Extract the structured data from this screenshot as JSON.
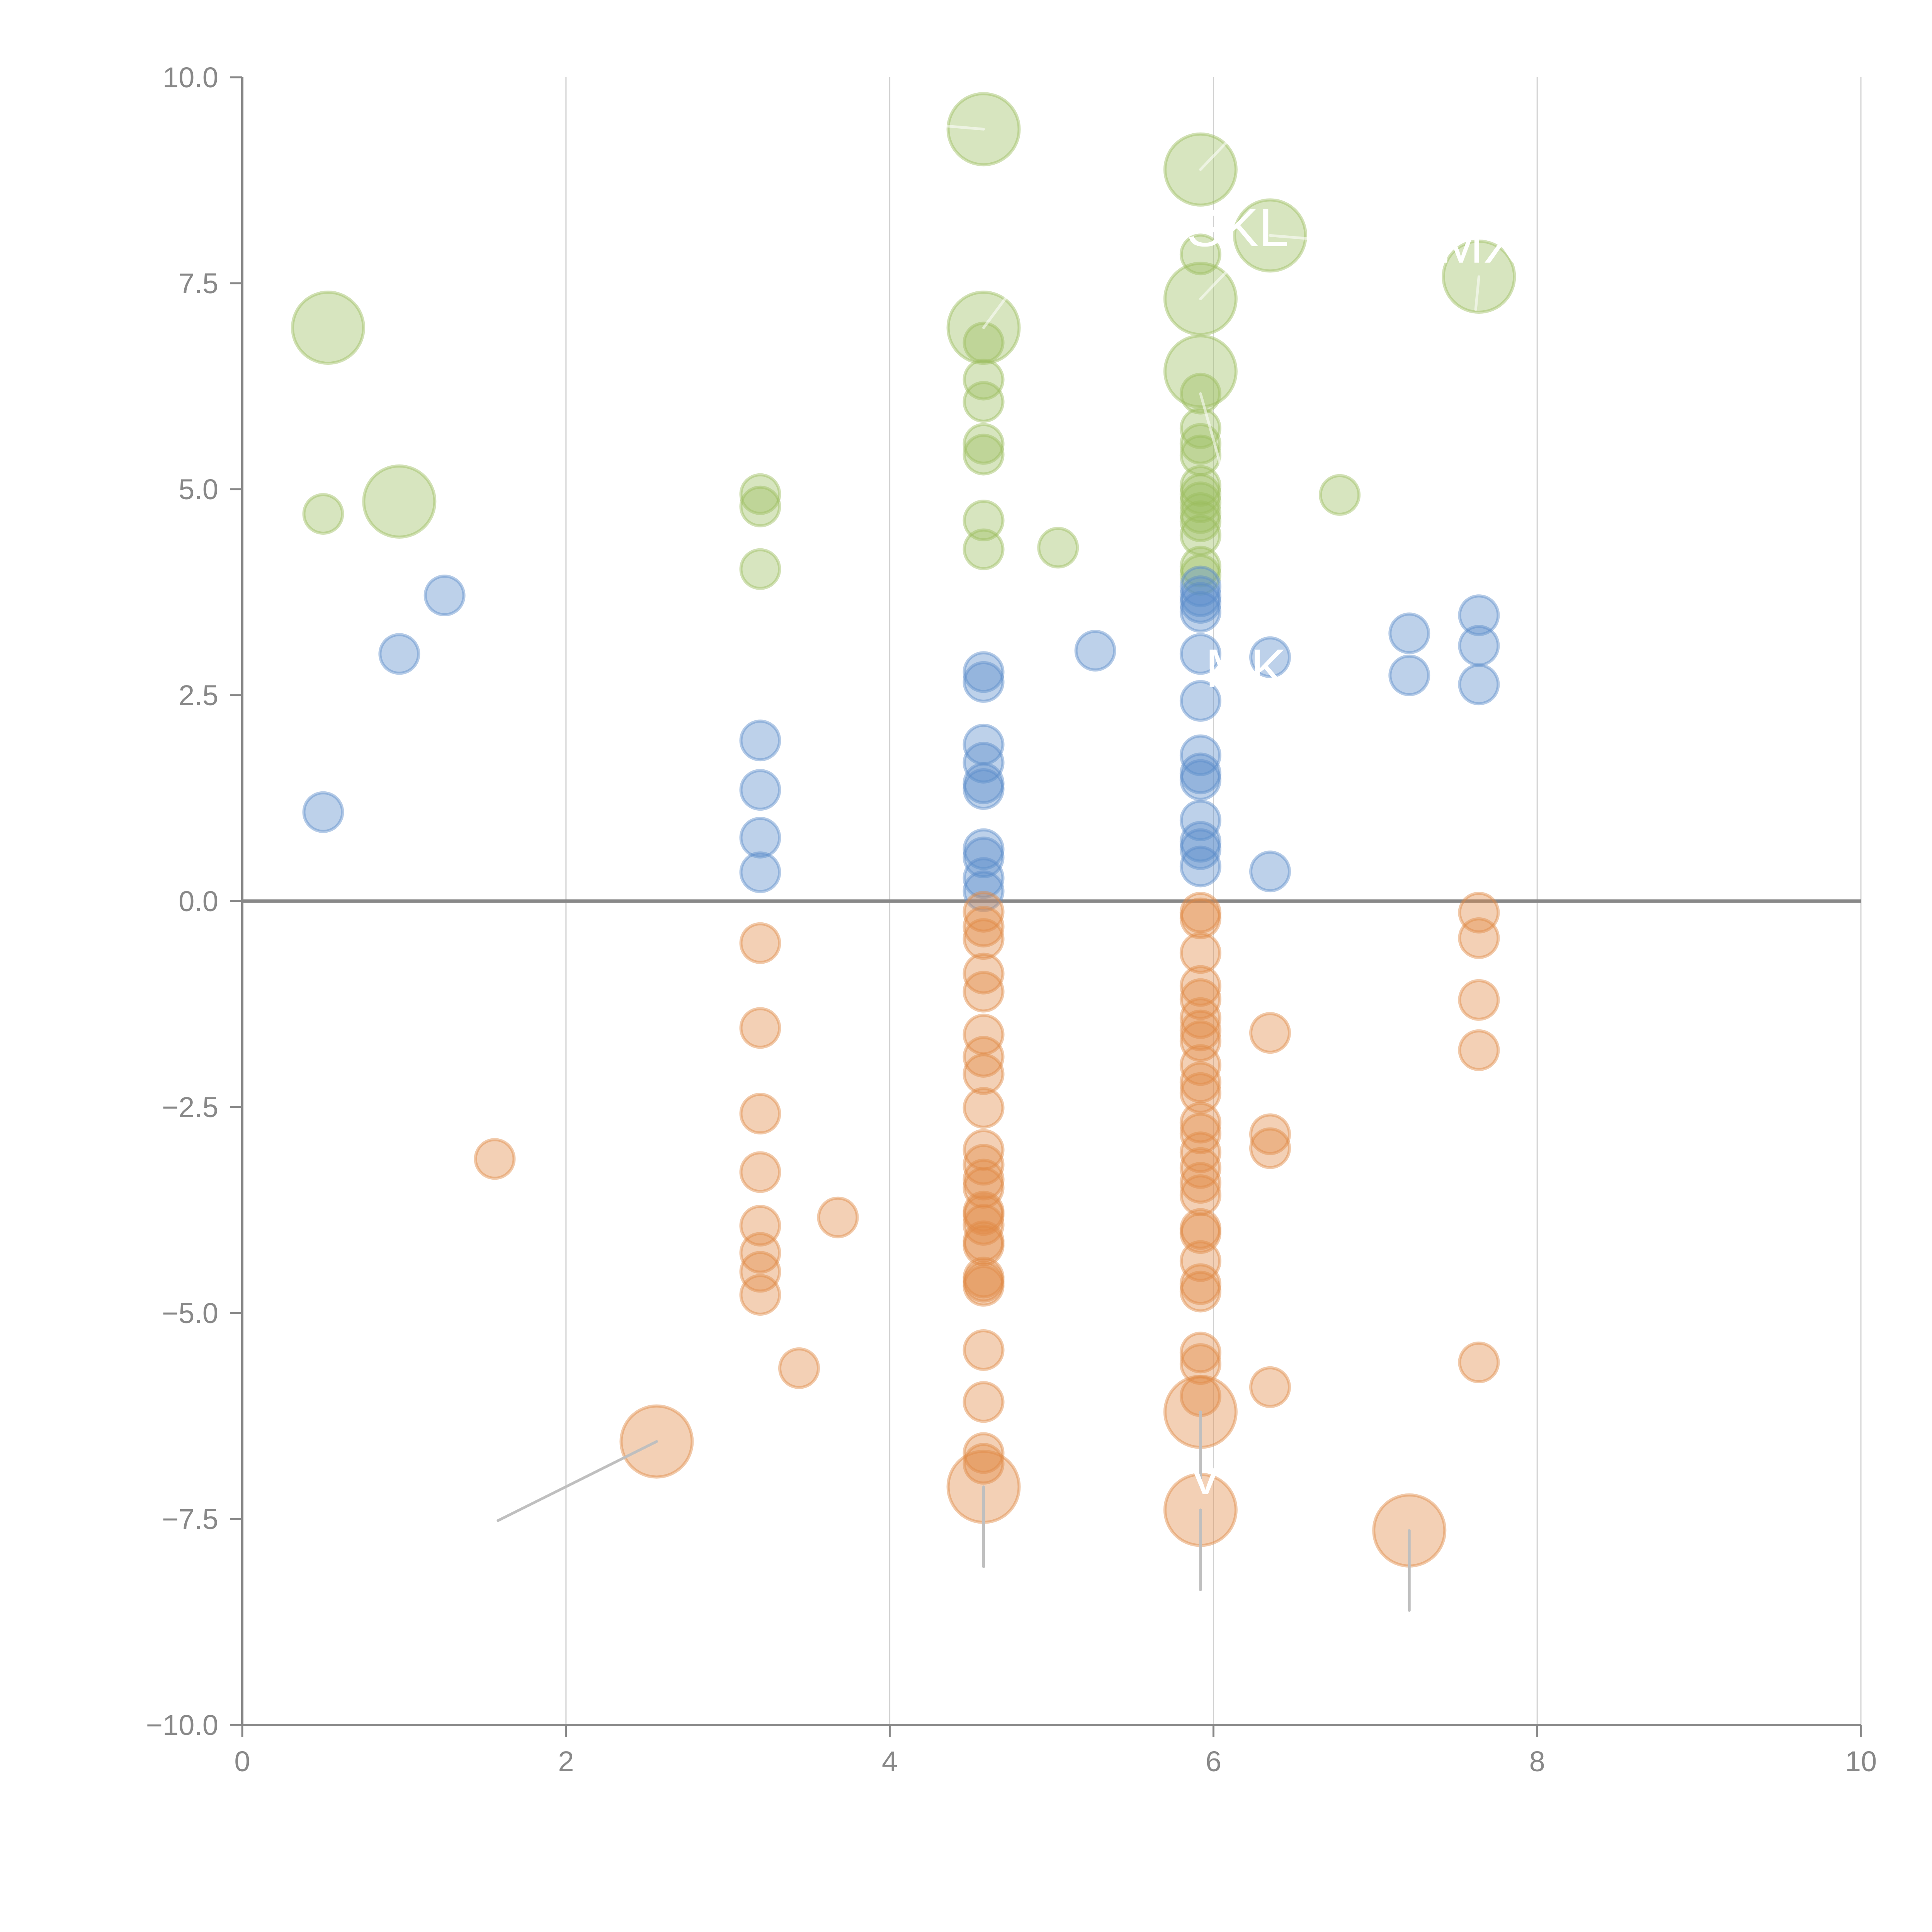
{
  "chart_data": {
    "type": "scatter",
    "title": "",
    "xlabel": "",
    "ylabel": "",
    "xlim": [
      0,
      10
    ],
    "ylim": [
      -10,
      10
    ],
    "x_ticks": [
      "0",
      "2",
      "4",
      "6",
      "8",
      "10"
    ],
    "x_tick_values": [
      0,
      2,
      4,
      6,
      8,
      10
    ],
    "y_ticks": [
      "10.0",
      "7.5",
      "5.0",
      "2.5",
      "0.0",
      "−2.5",
      "−5.0",
      "−7.5",
      "−10.0"
    ],
    "y_tick_values": [
      10,
      7.5,
      5,
      2.5,
      0,
      -2.5,
      -5,
      -7.5,
      -10
    ],
    "grid": "vertical",
    "zero_line": true,
    "legend": "none",
    "colors": {
      "green": "#9cbd5e",
      "blue": "#5b8cca",
      "orange": "#e08a45",
      "axis": "#888888",
      "grid": "#d0d0d0",
      "label": "#ffffff",
      "leader": "#bfbfbf"
    },
    "size_note": "s = small bubble, L = large bubble",
    "series": [
      {
        "name": "green",
        "color": "#9cbd5e",
        "points": [
          {
            "x": 0.53,
            "y": 6.96,
            "size": "L"
          },
          {
            "x": 0.97,
            "y": 4.85,
            "size": "L"
          },
          {
            "x": 0.5,
            "y": 4.7,
            "size": "s"
          },
          {
            "x": 3.2,
            "y": 4.94,
            "size": "s"
          },
          {
            "x": 3.2,
            "y": 4.79,
            "size": "s"
          },
          {
            "x": 3.2,
            "y": 4.03,
            "size": "s"
          },
          {
            "x": 4.58,
            "y": 9.37,
            "size": "L"
          },
          {
            "x": 4.58,
            "y": 6.96,
            "size": "L"
          },
          {
            "x": 4.58,
            "y": 6.78,
            "size": "s"
          },
          {
            "x": 4.58,
            "y": 6.33,
            "size": "s"
          },
          {
            "x": 4.58,
            "y": 6.06,
            "size": "s"
          },
          {
            "x": 4.58,
            "y": 5.55,
            "size": "s"
          },
          {
            "x": 4.58,
            "y": 5.42,
            "size": "s"
          },
          {
            "x": 4.58,
            "y": 4.62,
            "size": "s"
          },
          {
            "x": 4.58,
            "y": 4.27,
            "size": "s"
          },
          {
            "x": 5.04,
            "y": 4.29,
            "size": "s"
          },
          {
            "x": 5.92,
            "y": 8.88,
            "size": "L"
          },
          {
            "x": 5.92,
            "y": 7.85,
            "size": "s"
          },
          {
            "x": 5.92,
            "y": 7.31,
            "size": "L"
          },
          {
            "x": 5.92,
            "y": 6.43,
            "size": "L"
          },
          {
            "x": 5.92,
            "y": 6.16,
            "size": "s"
          },
          {
            "x": 5.92,
            "y": 5.74,
            "size": "s"
          },
          {
            "x": 5.92,
            "y": 5.55,
            "size": "s"
          },
          {
            "x": 5.92,
            "y": 5.41,
            "size": "s"
          },
          {
            "x": 5.92,
            "y": 5.04,
            "size": "s"
          },
          {
            "x": 5.92,
            "y": 4.94,
            "size": "s"
          },
          {
            "x": 5.92,
            "y": 4.84,
            "size": "s"
          },
          {
            "x": 5.92,
            "y": 4.71,
            "size": "s"
          },
          {
            "x": 5.92,
            "y": 4.61,
            "size": "s"
          },
          {
            "x": 5.92,
            "y": 4.44,
            "size": "s"
          },
          {
            "x": 5.92,
            "y": 4.06,
            "size": "s"
          },
          {
            "x": 5.92,
            "y": 3.96,
            "size": "s"
          },
          {
            "x": 6.35,
            "y": 8.08,
            "size": "L"
          },
          {
            "x": 6.78,
            "y": 4.93,
            "size": "s"
          },
          {
            "x": 7.64,
            "y": 7.58,
            "size": "L"
          }
        ]
      },
      {
        "name": "blue",
        "color": "#5b8cca",
        "points": [
          {
            "x": 0.5,
            "y": 1.08,
            "size": "s"
          },
          {
            "x": 0.97,
            "y": 3.0,
            "size": "s"
          },
          {
            "x": 1.25,
            "y": 3.71,
            "size": "s"
          },
          {
            "x": 3.2,
            "y": 1.95,
            "size": "s"
          },
          {
            "x": 3.2,
            "y": 1.35,
            "size": "s"
          },
          {
            "x": 3.2,
            "y": 0.77,
            "size": "s"
          },
          {
            "x": 3.2,
            "y": 0.35,
            "size": "s"
          },
          {
            "x": 4.58,
            "y": 2.78,
            "size": "s"
          },
          {
            "x": 4.58,
            "y": 2.66,
            "size": "s"
          },
          {
            "x": 4.58,
            "y": 1.9,
            "size": "s"
          },
          {
            "x": 4.58,
            "y": 1.68,
            "size": "s"
          },
          {
            "x": 4.58,
            "y": 1.43,
            "size": "s"
          },
          {
            "x": 4.58,
            "y": 1.36,
            "size": "s"
          },
          {
            "x": 4.58,
            "y": 0.63,
            "size": "s"
          },
          {
            "x": 4.58,
            "y": 0.53,
            "size": "s"
          },
          {
            "x": 4.58,
            "y": 0.28,
            "size": "s"
          },
          {
            "x": 4.58,
            "y": 0.12,
            "size": "s"
          },
          {
            "x": 5.27,
            "y": 3.04,
            "size": "s"
          },
          {
            "x": 5.92,
            "y": 3.82,
            "size": "s"
          },
          {
            "x": 5.92,
            "y": 3.7,
            "size": "s"
          },
          {
            "x": 5.92,
            "y": 3.62,
            "size": "s"
          },
          {
            "x": 5.92,
            "y": 3.51,
            "size": "s"
          },
          {
            "x": 5.92,
            "y": 3.0,
            "size": "s"
          },
          {
            "x": 5.92,
            "y": 2.43,
            "size": "s"
          },
          {
            "x": 5.92,
            "y": 1.77,
            "size": "s"
          },
          {
            "x": 5.92,
            "y": 1.55,
            "size": "s"
          },
          {
            "x": 5.92,
            "y": 1.47,
            "size": "s"
          },
          {
            "x": 5.92,
            "y": 0.98,
            "size": "s"
          },
          {
            "x": 5.92,
            "y": 0.72,
            "size": "s"
          },
          {
            "x": 5.92,
            "y": 0.63,
            "size": "s"
          },
          {
            "x": 5.92,
            "y": 0.42,
            "size": "s"
          },
          {
            "x": 6.35,
            "y": 2.96,
            "size": "s"
          },
          {
            "x": 6.35,
            "y": 0.36,
            "size": "s"
          },
          {
            "x": 7.21,
            "y": 3.25,
            "size": "s"
          },
          {
            "x": 7.21,
            "y": 2.74,
            "size": "s"
          },
          {
            "x": 7.64,
            "y": 3.47,
            "size": "s"
          },
          {
            "x": 7.64,
            "y": 3.1,
            "size": "s"
          },
          {
            "x": 7.64,
            "y": 2.63,
            "size": "s"
          }
        ]
      },
      {
        "name": "orange",
        "color": "#e08a45",
        "points": [
          {
            "x": 1.56,
            "y": -3.13,
            "size": "s"
          },
          {
            "x": 2.56,
            "y": -6.56,
            "size": "L"
          },
          {
            "x": 3.2,
            "y": -0.51,
            "size": "s"
          },
          {
            "x": 3.2,
            "y": -1.54,
            "size": "s"
          },
          {
            "x": 3.2,
            "y": -2.58,
            "size": "s"
          },
          {
            "x": 3.2,
            "y": -3.29,
            "size": "s"
          },
          {
            "x": 3.2,
            "y": -3.94,
            "size": "s"
          },
          {
            "x": 3.2,
            "y": -4.27,
            "size": "s"
          },
          {
            "x": 3.2,
            "y": -4.5,
            "size": "s"
          },
          {
            "x": 3.2,
            "y": -4.78,
            "size": "s"
          },
          {
            "x": 3.44,
            "y": -5.67,
            "size": "s"
          },
          {
            "x": 3.68,
            "y": -3.84,
            "size": "s"
          },
          {
            "x": 4.58,
            "y": -0.13,
            "size": "s"
          },
          {
            "x": 4.58,
            "y": -0.31,
            "size": "s"
          },
          {
            "x": 4.58,
            "y": -0.46,
            "size": "s"
          },
          {
            "x": 4.58,
            "y": -0.88,
            "size": "s"
          },
          {
            "x": 4.58,
            "y": -1.1,
            "size": "s"
          },
          {
            "x": 4.58,
            "y": -1.62,
            "size": "s"
          },
          {
            "x": 4.58,
            "y": -1.89,
            "size": "s"
          },
          {
            "x": 4.58,
            "y": -2.1,
            "size": "s"
          },
          {
            "x": 4.58,
            "y": -2.51,
            "size": "s"
          },
          {
            "x": 4.58,
            "y": -3.02,
            "size": "s"
          },
          {
            "x": 4.58,
            "y": -3.2,
            "size": "s"
          },
          {
            "x": 4.58,
            "y": -3.38,
            "size": "s"
          },
          {
            "x": 4.58,
            "y": -3.48,
            "size": "s"
          },
          {
            "x": 4.58,
            "y": -3.77,
            "size": "s"
          },
          {
            "x": 4.58,
            "y": -3.81,
            "size": "s"
          },
          {
            "x": 4.58,
            "y": -3.93,
            "size": "s"
          },
          {
            "x": 4.58,
            "y": -4.13,
            "size": "s"
          },
          {
            "x": 4.58,
            "y": -4.18,
            "size": "s"
          },
          {
            "x": 4.58,
            "y": -4.57,
            "size": "s"
          },
          {
            "x": 4.58,
            "y": -4.62,
            "size": "s"
          },
          {
            "x": 4.58,
            "y": -4.67,
            "size": "s"
          },
          {
            "x": 4.58,
            "y": -5.45,
            "size": "s"
          },
          {
            "x": 4.58,
            "y": -6.08,
            "size": "s"
          },
          {
            "x": 4.58,
            "y": -6.7,
            "size": "s"
          },
          {
            "x": 4.58,
            "y": -6.83,
            "size": "s"
          },
          {
            "x": 4.58,
            "y": -7.11,
            "size": "L"
          },
          {
            "x": 5.92,
            "y": -0.14,
            "size": "s"
          },
          {
            "x": 5.92,
            "y": -0.21,
            "size": "s"
          },
          {
            "x": 5.92,
            "y": -0.63,
            "size": "s"
          },
          {
            "x": 5.92,
            "y": -1.03,
            "size": "s"
          },
          {
            "x": 5.92,
            "y": -1.19,
            "size": "s"
          },
          {
            "x": 5.92,
            "y": -1.42,
            "size": "s"
          },
          {
            "x": 5.92,
            "y": -1.57,
            "size": "s"
          },
          {
            "x": 5.92,
            "y": -1.7,
            "size": "s"
          },
          {
            "x": 5.92,
            "y": -1.99,
            "size": "s"
          },
          {
            "x": 5.92,
            "y": -2.2,
            "size": "s"
          },
          {
            "x": 5.92,
            "y": -2.33,
            "size": "s"
          },
          {
            "x": 5.92,
            "y": -2.69,
            "size": "s"
          },
          {
            "x": 5.92,
            "y": -2.82,
            "size": "s"
          },
          {
            "x": 5.92,
            "y": -3.05,
            "size": "s"
          },
          {
            "x": 5.92,
            "y": -3.24,
            "size": "s"
          },
          {
            "x": 5.92,
            "y": -3.42,
            "size": "s"
          },
          {
            "x": 5.92,
            "y": -3.57,
            "size": "s"
          },
          {
            "x": 5.92,
            "y": -3.98,
            "size": "s"
          },
          {
            "x": 5.92,
            "y": -4.03,
            "size": "s"
          },
          {
            "x": 5.92,
            "y": -4.37,
            "size": "s"
          },
          {
            "x": 5.92,
            "y": -4.65,
            "size": "s"
          },
          {
            "x": 5.92,
            "y": -4.74,
            "size": "s"
          },
          {
            "x": 5.92,
            "y": -5.48,
            "size": "s"
          },
          {
            "x": 5.92,
            "y": -5.62,
            "size": "s"
          },
          {
            "x": 5.92,
            "y": -6.01,
            "size": "s"
          },
          {
            "x": 5.92,
            "y": -6.2,
            "size": "L"
          },
          {
            "x": 5.92,
            "y": -7.39,
            "size": "L"
          },
          {
            "x": 6.35,
            "y": -1.6,
            "size": "s"
          },
          {
            "x": 6.35,
            "y": -2.83,
            "size": "s"
          },
          {
            "x": 6.35,
            "y": -3.0,
            "size": "s"
          },
          {
            "x": 6.35,
            "y": -5.9,
            "size": "s"
          },
          {
            "x": 7.21,
            "y": -7.64,
            "size": "L"
          },
          {
            "x": 7.64,
            "y": -0.14,
            "size": "s"
          },
          {
            "x": 7.64,
            "y": -0.45,
            "size": "s"
          },
          {
            "x": 7.64,
            "y": -1.2,
            "size": "s"
          },
          {
            "x": 7.64,
            "y": -1.81,
            "size": "s"
          },
          {
            "x": 7.64,
            "y": -5.6,
            "size": "s"
          }
        ]
      }
    ],
    "annotations": [
      {
        "text": "SKL",
        "x": 6.35,
        "y": 8.08,
        "label_x": 6.15,
        "label_y": 7.95,
        "color": "#ffffff"
      },
      {
        "text": "MX",
        "x": 7.64,
        "y": 7.58,
        "label_x": 7.64,
        "label_y": 7.75,
        "color": "#ffffff"
      },
      {
        "text": "MK",
        "x": 6.35,
        "y": 2.96,
        "label_x": 6.2,
        "label_y": 2.6,
        "color": "#ffffff"
      },
      {
        "text": "V",
        "x": 5.92,
        "y": -6.2,
        "label_x": 5.95,
        "label_y": -7.2,
        "color": "#ffffff"
      }
    ],
    "leader_lines": [
      {
        "from": [
          2.56,
          -6.56
        ],
        "to": [
          1.58,
          -7.52
        ],
        "color": "#bfbfbf"
      },
      {
        "from": [
          4.58,
          -7.11
        ],
        "to": [
          4.58,
          -8.08
        ],
        "color": "#bfbfbf"
      },
      {
        "from": [
          5.92,
          -6.2
        ],
        "to": [
          5.92,
          -7.1
        ],
        "color": "#bfbfbf"
      },
      {
        "from": [
          5.92,
          -7.39
        ],
        "to": [
          5.92,
          -8.36
        ],
        "color": "#bfbfbf"
      },
      {
        "from": [
          7.21,
          -7.64
        ],
        "to": [
          7.21,
          -8.61
        ],
        "color": "#bfbfbf"
      },
      {
        "from": [
          4.58,
          9.37
        ],
        "to": [
          4.1,
          9.45
        ],
        "color": "#ffffff"
      },
      {
        "from": [
          4.58,
          6.96
        ],
        "to": [
          4.72,
          7.33
        ],
        "color": "#ffffff"
      },
      {
        "from": [
          5.92,
          8.88
        ],
        "to": [
          6.1,
          9.25
        ],
        "color": "#ffffff"
      },
      {
        "from": [
          5.92,
          7.31
        ],
        "to": [
          6.1,
          7.68
        ],
        "color": "#ffffff"
      },
      {
        "from": [
          6.35,
          8.08
        ],
        "to": [
          6.72,
          8.02
        ],
        "color": "#ffffff"
      },
      {
        "from": [
          5.92,
          6.16
        ],
        "to": [
          6.05,
          5.25
        ],
        "color": "#ffffff"
      },
      {
        "from": [
          7.64,
          7.58
        ],
        "to": [
          7.62,
          7.18
        ],
        "color": "#ffffff"
      }
    ]
  }
}
